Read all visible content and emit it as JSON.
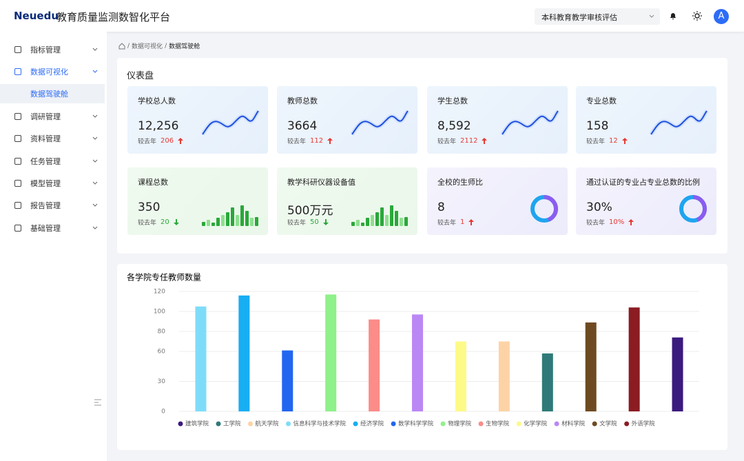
{
  "header": {
    "logo": "Neuedu",
    "title": "教育质量监测数智化平台",
    "select": "本科教育教学审核评估",
    "avatar": "A"
  },
  "sidebar": {
    "items": [
      {
        "label": "指标管理",
        "active": false,
        "sub": false
      },
      {
        "label": "数据可视化",
        "active": true,
        "sub": false
      },
      {
        "label": "数据驾驶舱",
        "active": true,
        "sub": true
      },
      {
        "label": "调研管理",
        "active": false,
        "sub": false
      },
      {
        "label": "资料管理",
        "active": false,
        "sub": false
      },
      {
        "label": "任务管理",
        "active": false,
        "sub": false
      },
      {
        "label": "模型管理",
        "active": false,
        "sub": false
      },
      {
        "label": "报告管理",
        "active": false,
        "sub": false
      },
      {
        "label": "基础管理",
        "active": false,
        "sub": false
      }
    ]
  },
  "breadcrumb": [
    "数据可视化",
    "数据驾驶舱"
  ],
  "dashboard": {
    "title": "仪表盘",
    "cards": [
      {
        "title": "学校总人数",
        "value": "12,256",
        "compare": "较去年",
        "change": "206",
        "trend": "up",
        "theme": "blue"
      },
      {
        "title": "教师总数",
        "value": "3664",
        "compare": "较去年",
        "change": "112",
        "trend": "up",
        "theme": "blue"
      },
      {
        "title": "学生总数",
        "value": "8,592",
        "compare": "较去年",
        "change": "2112",
        "trend": "up",
        "theme": "blue"
      },
      {
        "title": "专业总数",
        "value": "158",
        "compare": "较去年",
        "change": "12",
        "trend": "up",
        "theme": "blue"
      },
      {
        "title": "课程总数",
        "value": "350",
        "compare": "较去年",
        "change": "20",
        "trend": "down",
        "theme": "green"
      },
      {
        "title": "教学科研仪器设备值",
        "value": "500万元",
        "compare": "较去年",
        "change": "50",
        "trend": "down",
        "theme": "green"
      },
      {
        "title": "全校的生师比",
        "value": "8",
        "compare": "较去年",
        "change": "1",
        "trend": "up",
        "theme": "purple"
      },
      {
        "title": "通过认证的专业占专业总数的比例",
        "value": "30%",
        "compare": "较去年",
        "change": "10%",
        "trend": "up",
        "theme": "purple"
      }
    ]
  },
  "chart_data": {
    "type": "bar",
    "title": "各学院专任教师数量",
    "ylim": [
      0,
      120
    ],
    "yticks": [
      0,
      30,
      60,
      80,
      100,
      120
    ],
    "grid": true,
    "series": [
      {
        "name": "建筑学院",
        "color": "#3b1a7e",
        "values": [
          74
        ]
      },
      {
        "name": "工学院",
        "color": "#2f7a78",
        "values": [
          58
        ]
      },
      {
        "name": "航天学院",
        "color": "#fdd3a6",
        "values": [
          70
        ]
      },
      {
        "name": "信息科学与技术学院",
        "color": "#7fdcf9",
        "values": [
          105
        ]
      },
      {
        "name": "经济学院",
        "color": "#18aef4",
        "values": [
          116
        ]
      },
      {
        "name": "数学科学学院",
        "color": "#2266f0",
        "values": [
          61
        ]
      },
      {
        "name": "物理学院",
        "color": "#8ff18a",
        "values": [
          117
        ]
      },
      {
        "name": "生物学院",
        "color": "#fb8c88",
        "values": [
          92
        ]
      },
      {
        "name": "化学学院",
        "color": "#fdfa88",
        "values": [
          70
        ]
      },
      {
        "name": "材料学院",
        "color": "#bb87f4",
        "values": [
          97
        ]
      },
      {
        "name": "文学院",
        "color": "#6e4a22",
        "values": [
          89
        ]
      },
      {
        "name": "外语学院",
        "color": "#8b1c22",
        "values": [
          104
        ]
      }
    ]
  }
}
